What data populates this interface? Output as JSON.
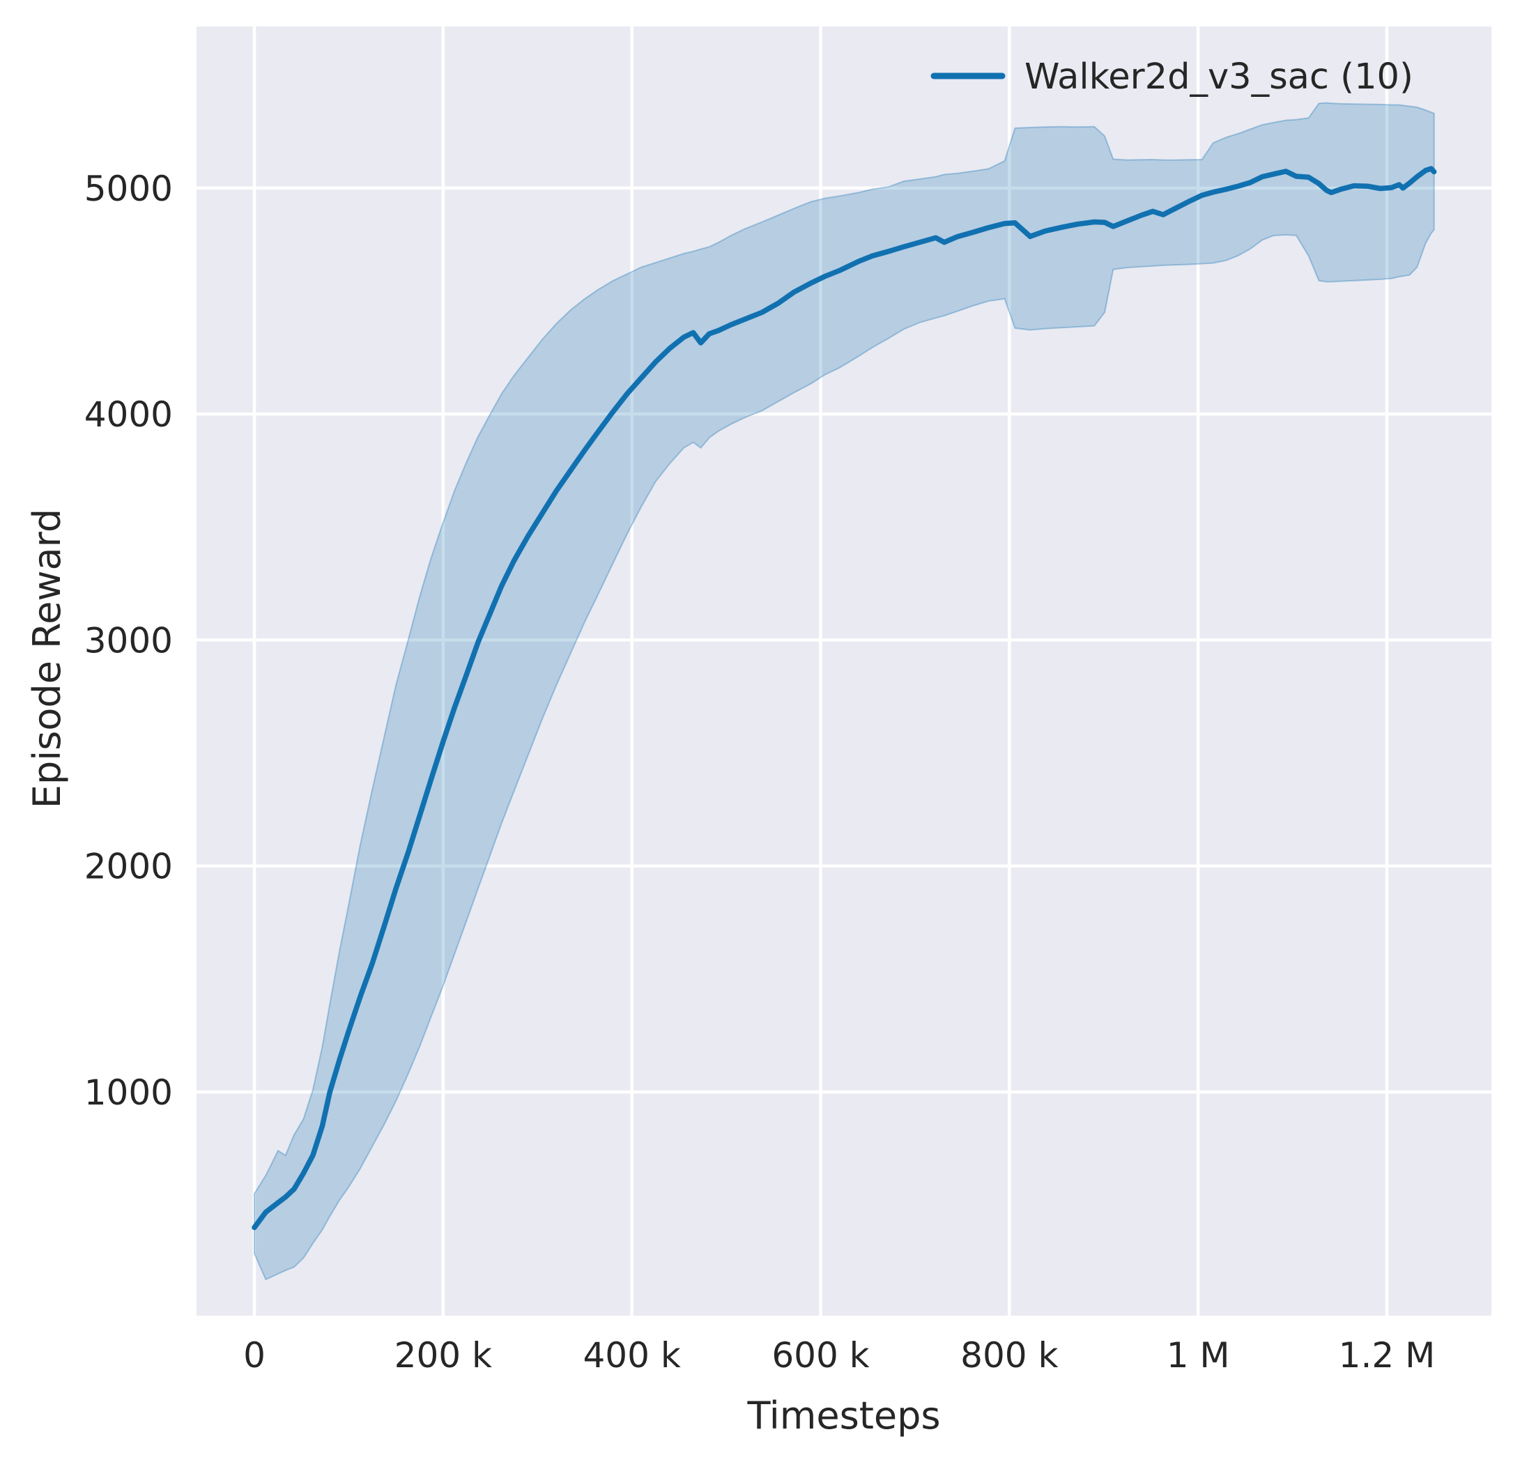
{
  "chart_data": {
    "type": "line",
    "title": "",
    "xlabel": "Timesteps",
    "ylabel": "Episode Reward",
    "axes_background": "#eaeaf2",
    "grid_color": "#ffffff",
    "text_color": "#262626",
    "grid": true,
    "xlim": [
      -61300,
      1310800
    ],
    "ylim": [
      10,
      5715
    ],
    "x_ticks": [
      {
        "value": 0,
        "label": "0"
      },
      {
        "value": 200000,
        "label": "200 k"
      },
      {
        "value": 400000,
        "label": "400 k"
      },
      {
        "value": 600000,
        "label": "600 k"
      },
      {
        "value": 800000,
        "label": "800 k"
      },
      {
        "value": 1000000,
        "label": "1 M"
      },
      {
        "value": 1200000,
        "label": "1.2 M"
      }
    ],
    "y_ticks": [
      {
        "value": 1000,
        "label": "1000"
      },
      {
        "value": 2000,
        "label": "2000"
      },
      {
        "value": 3000,
        "label": "3000"
      },
      {
        "value": 4000,
        "label": "4000"
      },
      {
        "value": 5000,
        "label": "5000"
      }
    ],
    "legend": {
      "position": "upper right",
      "entries": [
        {
          "label": "Walker2d_v3_sac (10)",
          "color": "#1171b0"
        }
      ]
    },
    "series": [
      {
        "name": "Walker2d_v3_sac (10)",
        "color": "#1171b0",
        "band_fill": "rgba(17,113,176,0.24)",
        "band_edge": "rgba(17,113,176,0.32)",
        "x": [
          0,
          12000,
          25000,
          33000,
          42000,
          52000,
          62000,
          72000,
          80000,
          90000,
          100000,
          112000,
          125000,
          138000,
          150000,
          163000,
          175000,
          187000,
          200000,
          212000,
          225000,
          237000,
          250000,
          262000,
          275000,
          290000,
          305000,
          320000,
          335000,
          350000,
          364000,
          380000,
          395000,
          410000,
          425000,
          440000,
          455000,
          465000,
          473000,
          482000,
          492000,
          505000,
          520000,
          538000,
          555000,
          572000,
          590000,
          605000,
          620000,
          640000,
          655000,
          672000,
          688000,
          705000,
          722000,
          731000,
          745000,
          762000,
          778000,
          795000,
          806000,
          822000,
          838000,
          855000,
          872000,
          890000,
          901000,
          910000,
          925000,
          940000,
          952000,
          963000,
          976000,
          990000,
          1004000,
          1016000,
          1030000,
          1042000,
          1055000,
          1068000,
          1080000,
          1093000,
          1104000,
          1117000,
          1128000,
          1136000,
          1141000,
          1152000,
          1165000,
          1180000,
          1193000,
          1205000,
          1213000,
          1217000,
          1224000,
          1232000,
          1241000,
          1247000,
          1250000
        ],
        "mean": [
          400,
          468,
          510,
          535,
          570,
          640,
          720,
          850,
          1000,
          1140,
          1270,
          1420,
          1570,
          1740,
          1900,
          2060,
          2220,
          2380,
          2550,
          2700,
          2850,
          2990,
          3120,
          3240,
          3350,
          3460,
          3560,
          3660,
          3750,
          3840,
          3920,
          4010,
          4090,
          4160,
          4230,
          4290,
          4340,
          4360,
          4315,
          4355,
          4370,
          4395,
          4420,
          4450,
          4490,
          4540,
          4580,
          4610,
          4635,
          4675,
          4700,
          4720,
          4740,
          4760,
          4780,
          4760,
          4785,
          4805,
          4825,
          4843,
          4846,
          4786,
          4810,
          4826,
          4840,
          4850,
          4848,
          4830,
          4855,
          4880,
          4897,
          4882,
          4910,
          4940,
          4968,
          4982,
          4995,
          5008,
          5024,
          5050,
          5062,
          5074,
          5052,
          5048,
          5020,
          4990,
          4980,
          4996,
          5010,
          5008,
          4998,
          5002,
          5015,
          5000,
          5022,
          5050,
          5078,
          5086,
          5072
        ],
        "lower": [
          285,
          170,
          195,
          210,
          225,
          265,
          330,
          390,
          450,
          520,
          580,
          660,
          760,
          860,
          960,
          1080,
          1200,
          1330,
          1470,
          1610,
          1760,
          1900,
          2050,
          2190,
          2330,
          2490,
          2650,
          2800,
          2940,
          3080,
          3200,
          3340,
          3470,
          3590,
          3700,
          3780,
          3850,
          3875,
          3850,
          3895,
          3925,
          3955,
          3985,
          4015,
          4055,
          4095,
          4135,
          4175,
          4205,
          4255,
          4295,
          4335,
          4375,
          4405,
          4425,
          4435,
          4455,
          4480,
          4500,
          4510,
          4380,
          4372,
          4378,
          4382,
          4386,
          4390,
          4450,
          4640,
          4648,
          4652,
          4655,
          4658,
          4660,
          4662,
          4665,
          4668,
          4680,
          4700,
          4730,
          4770,
          4790,
          4793,
          4790,
          4700,
          4590,
          4585,
          4585,
          4588,
          4590,
          4593,
          4596,
          4600,
          4608,
          4610,
          4615,
          4650,
          4755,
          4800,
          4815
        ],
        "upper": [
          550,
          630,
          740,
          720,
          810,
          880,
          1010,
          1200,
          1390,
          1620,
          1830,
          2090,
          2340,
          2580,
          2800,
          3000,
          3190,
          3360,
          3520,
          3660,
          3790,
          3900,
          4000,
          4090,
          4170,
          4250,
          4330,
          4400,
          4460,
          4510,
          4550,
          4590,
          4620,
          4650,
          4670,
          4690,
          4710,
          4720,
          4730,
          4740,
          4760,
          4790,
          4820,
          4850,
          4880,
          4910,
          4940,
          4955,
          4965,
          4980,
          4995,
          5005,
          5030,
          5040,
          5050,
          5060,
          5065,
          5075,
          5085,
          5120,
          5265,
          5268,
          5270,
          5272,
          5270,
          5272,
          5230,
          5128,
          5124,
          5125,
          5126,
          5124,
          5124,
          5125,
          5126,
          5200,
          5225,
          5240,
          5260,
          5280,
          5290,
          5300,
          5303,
          5310,
          5375,
          5377,
          5375,
          5373,
          5372,
          5371,
          5370,
          5368,
          5368,
          5366,
          5362,
          5358,
          5345,
          5335,
          5330
        ]
      }
    ]
  }
}
